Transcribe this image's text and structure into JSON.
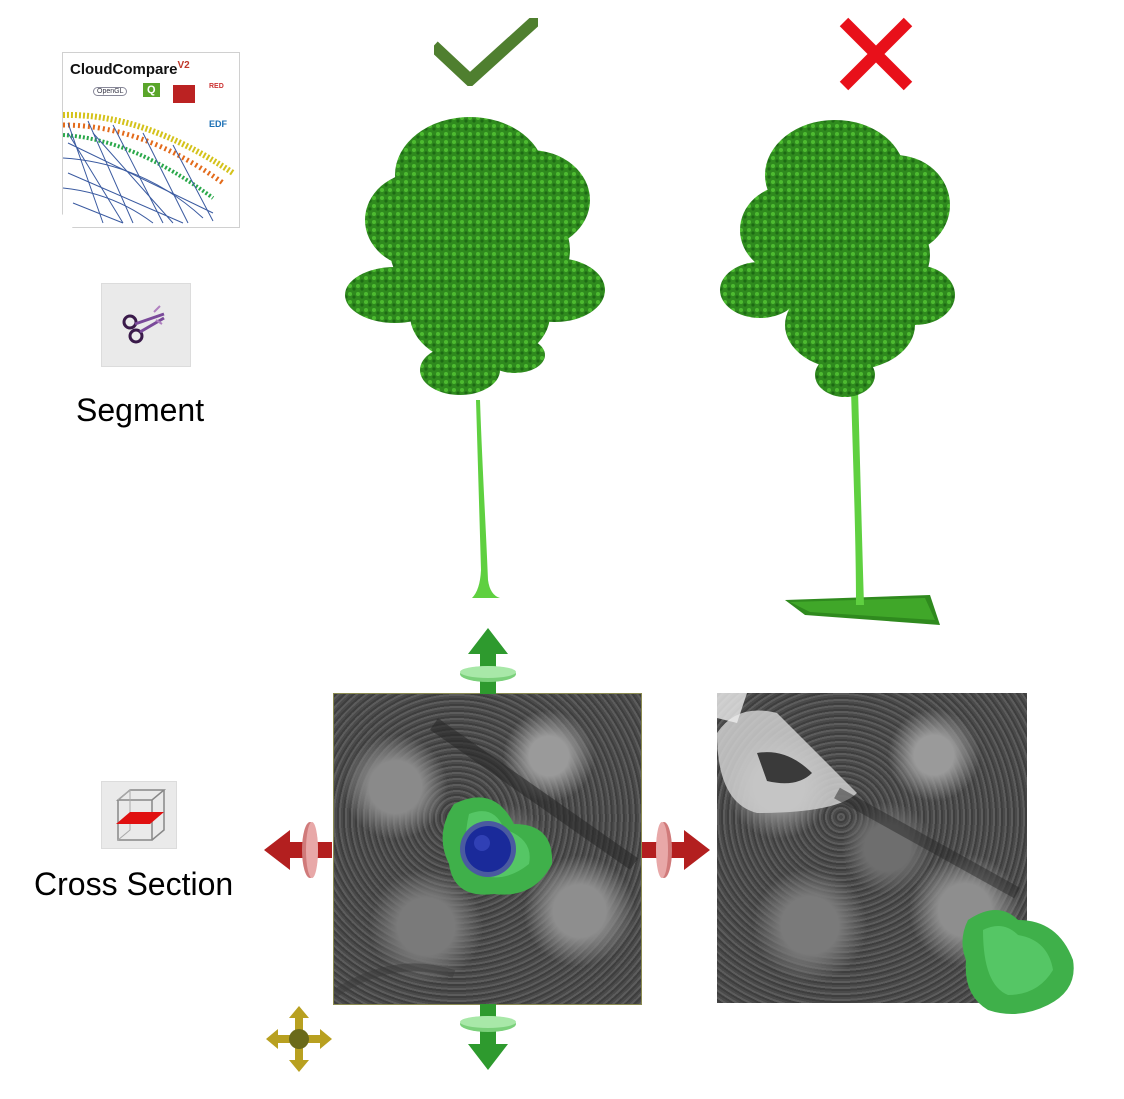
{
  "logo": {
    "title": "CloudCompare",
    "version": "V2",
    "badges": [
      "OpenGL",
      "Q",
      "RED",
      "EDF"
    ]
  },
  "tools": {
    "segment": {
      "label": "Segment",
      "icon": "scissors-icon"
    },
    "cross_section": {
      "label": "Cross Section",
      "icon": "cross-section-box-icon"
    }
  },
  "indicators": {
    "correct": {
      "icon": "checkmark-icon",
      "color": "#4f7f2f"
    },
    "incorrect": {
      "icon": "x-mark-icon",
      "color": "#e8101a"
    }
  },
  "colors": {
    "tree_green": "#3fae2a",
    "trunk_green": "#5fd040",
    "gizmo_green": "#2e9a2e",
    "gizmo_red": "#b31f1f",
    "gizmo_yellow": "#b8a020",
    "center_blue": "#1a2a9a"
  }
}
